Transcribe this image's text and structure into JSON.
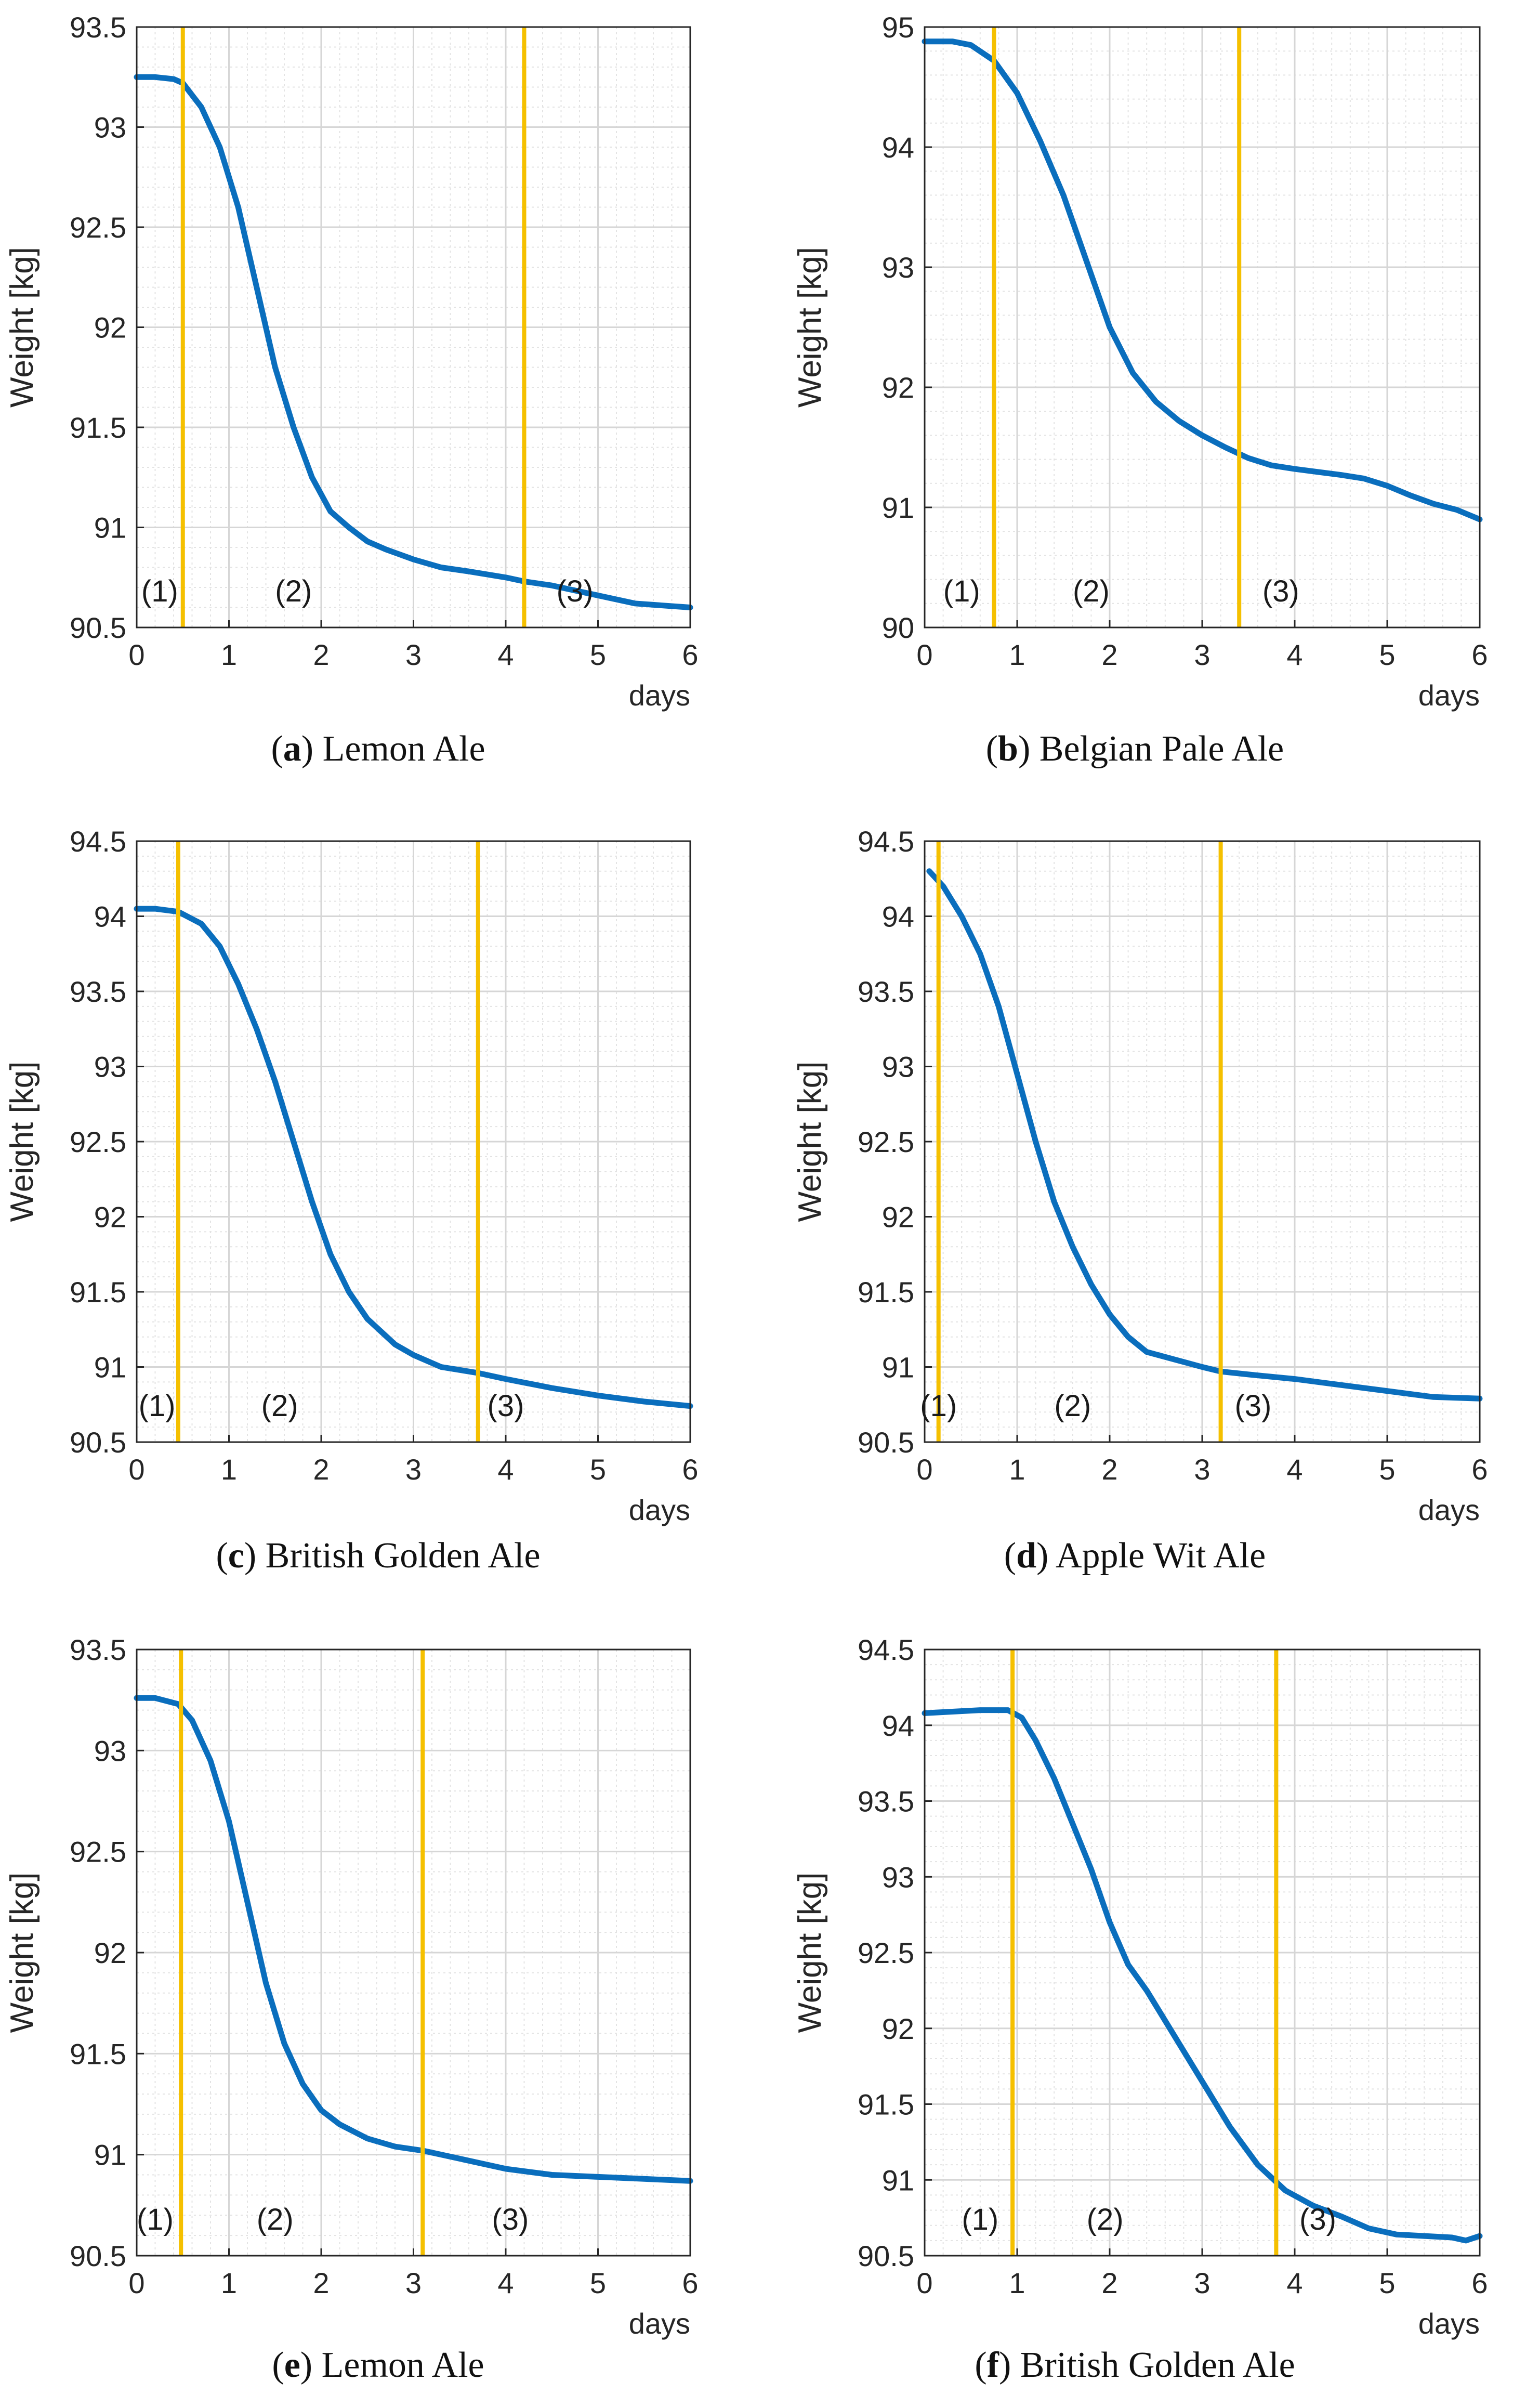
{
  "chart_data": [
    {
      "type": "line",
      "panel_letter": "a",
      "caption": "Lemon Ale",
      "ylabel": "Weight [kg]",
      "xlabel": "days",
      "xlim": [
        0,
        6
      ],
      "ylim": [
        90.5,
        93.5
      ],
      "xticks": [
        0,
        1,
        2,
        3,
        4,
        5,
        6
      ],
      "yticks": [
        90.5,
        91,
        91.5,
        92,
        92.5,
        93,
        93.5
      ],
      "ytick_labels": [
        "90.5",
        "91",
        "91.5",
        "92",
        "92.5",
        "93",
        "93.5"
      ],
      "grid": true,
      "series": [
        {
          "name": "weight",
          "color": "#0a6ebd",
          "x": [
            0,
            0.2,
            0.4,
            0.5,
            0.7,
            0.9,
            1.1,
            1.3,
            1.5,
            1.7,
            1.9,
            2.1,
            2.3,
            2.5,
            2.7,
            3.0,
            3.3,
            3.6,
            4.0,
            4.2,
            4.5,
            4.8,
            5.1,
            5.4,
            5.7,
            6.0
          ],
          "y": [
            93.25,
            93.25,
            93.24,
            93.22,
            93.1,
            92.9,
            92.6,
            92.2,
            91.8,
            91.5,
            91.25,
            91.08,
            91.0,
            90.93,
            90.89,
            90.84,
            90.8,
            90.78,
            90.75,
            90.73,
            90.71,
            90.68,
            90.65,
            90.62,
            90.61,
            90.6
          ]
        }
      ],
      "vlines": [
        0.5,
        4.2
      ],
      "phase_labels": [
        {
          "text": "(1)",
          "x": 0.25
        },
        {
          "text": "(2)",
          "x": 1.7
        },
        {
          "text": "(3)",
          "x": 4.75
        }
      ]
    },
    {
      "type": "line",
      "panel_letter": "b",
      "caption": "Belgian Pale Ale",
      "ylabel": "Weight [kg]",
      "xlabel": "days",
      "xlim": [
        0,
        6
      ],
      "ylim": [
        90,
        95
      ],
      "xticks": [
        0,
        1,
        2,
        3,
        4,
        5,
        6
      ],
      "yticks": [
        90,
        91,
        92,
        93,
        94,
        95
      ],
      "ytick_labels": [
        "90",
        "91",
        "92",
        "93",
        "94",
        "95"
      ],
      "grid": true,
      "series": [
        {
          "name": "weight",
          "color": "#0a6ebd",
          "x": [
            0,
            0.3,
            0.5,
            0.75,
            1.0,
            1.25,
            1.5,
            1.75,
            2.0,
            2.25,
            2.5,
            2.75,
            3.0,
            3.25,
            3.5,
            3.75,
            4.0,
            4.5,
            4.75,
            5.0,
            5.25,
            5.5,
            5.75,
            6.0
          ],
          "y": [
            94.88,
            94.88,
            94.85,
            94.72,
            94.45,
            94.05,
            93.6,
            93.05,
            92.5,
            92.12,
            91.88,
            91.72,
            91.6,
            91.5,
            91.41,
            91.35,
            91.32,
            91.27,
            91.24,
            91.18,
            91.1,
            91.03,
            90.98,
            90.9
          ]
        }
      ],
      "vlines": [
        0.75,
        3.4
      ],
      "phase_labels": [
        {
          "text": "(1)",
          "x": 0.4
        },
        {
          "text": "(2)",
          "x": 1.8
        },
        {
          "text": "(3)",
          "x": 3.85
        }
      ]
    },
    {
      "type": "line",
      "panel_letter": "c",
      "caption": "British Golden Ale",
      "ylabel": "Weight [kg]",
      "xlabel": "days",
      "xlim": [
        0,
        6
      ],
      "ylim": [
        90.5,
        94.5
      ],
      "xticks": [
        0,
        1,
        2,
        3,
        4,
        5,
        6
      ],
      "yticks": [
        90.5,
        91,
        91.5,
        92,
        92.5,
        93,
        93.5,
        94,
        94.5
      ],
      "ytick_labels": [
        "90.5",
        "91",
        "91.5",
        "92",
        "92.5",
        "93",
        "93.5",
        "94",
        "94.5"
      ],
      "grid": true,
      "series": [
        {
          "name": "weight",
          "color": "#0a6ebd",
          "x": [
            0,
            0.2,
            0.45,
            0.7,
            0.9,
            1.1,
            1.3,
            1.5,
            1.7,
            1.9,
            2.1,
            2.3,
            2.5,
            2.8,
            3.0,
            3.3,
            3.7,
            4.0,
            4.5,
            5.0,
            5.5,
            6.0
          ],
          "y": [
            94.05,
            94.05,
            94.03,
            93.95,
            93.8,
            93.55,
            93.25,
            92.9,
            92.5,
            92.1,
            91.75,
            91.5,
            91.32,
            91.15,
            91.08,
            91.0,
            90.96,
            90.92,
            90.86,
            90.81,
            90.77,
            90.74
          ]
        }
      ],
      "vlines": [
        0.45,
        3.7
      ],
      "phase_labels": [
        {
          "text": "(1)",
          "x": 0.22
        },
        {
          "text": "(2)",
          "x": 1.55
        },
        {
          "text": "(3)",
          "x": 4.0
        }
      ]
    },
    {
      "type": "line",
      "panel_letter": "d",
      "caption": "Apple Wit Ale",
      "ylabel": "Weight [kg]",
      "xlabel": "days",
      "xlim": [
        0,
        6
      ],
      "ylim": [
        90.5,
        94.5
      ],
      "xticks": [
        0,
        1,
        2,
        3,
        4,
        5,
        6
      ],
      "yticks": [
        90.5,
        91,
        91.5,
        92,
        92.5,
        93,
        93.5,
        94,
        94.5
      ],
      "ytick_labels": [
        "90.5",
        "91",
        "91.5",
        "92",
        "92.5",
        "93",
        "93.5",
        "94",
        "94.5"
      ],
      "grid": true,
      "series": [
        {
          "name": "weight",
          "color": "#0a6ebd",
          "x": [
            0.05,
            0.2,
            0.4,
            0.6,
            0.8,
            1.0,
            1.2,
            1.4,
            1.6,
            1.8,
            2.0,
            2.2,
            2.4,
            2.7,
            3.0,
            3.2,
            3.5,
            4.0,
            4.5,
            5.0,
            5.5,
            6.0
          ],
          "y": [
            94.3,
            94.2,
            94.0,
            93.75,
            93.4,
            92.95,
            92.5,
            92.1,
            91.8,
            91.55,
            91.35,
            91.2,
            91.1,
            91.05,
            91.0,
            90.97,
            90.95,
            90.92,
            90.88,
            90.84,
            90.8,
            90.79
          ]
        }
      ],
      "vlines": [
        0.15,
        3.2
      ],
      "phase_labels": [
        {
          "text": "(1)",
          "x": 0.15
        },
        {
          "text": "(2)",
          "x": 1.6
        },
        {
          "text": "(3)",
          "x": 3.55
        }
      ]
    },
    {
      "type": "line",
      "panel_letter": "e",
      "caption": "Lemon Ale",
      "ylabel": "Weight [kg]",
      "xlabel": "days",
      "xlim": [
        0,
        6
      ],
      "ylim": [
        90.5,
        93.5
      ],
      "xticks": [
        0,
        1,
        2,
        3,
        4,
        5,
        6
      ],
      "yticks": [
        90.5,
        91,
        91.5,
        92,
        92.5,
        93,
        93.5
      ],
      "ytick_labels": [
        "90.5",
        "91",
        "91.5",
        "92",
        "92.5",
        "93",
        "93.5"
      ],
      "grid": true,
      "series": [
        {
          "name": "weight",
          "color": "#0a6ebd",
          "x": [
            0,
            0.2,
            0.45,
            0.6,
            0.8,
            1.0,
            1.2,
            1.4,
            1.6,
            1.8,
            2.0,
            2.2,
            2.5,
            2.8,
            3.1,
            3.5,
            4.0,
            4.5,
            5.0,
            5.5,
            6.0
          ],
          "y": [
            93.26,
            93.26,
            93.23,
            93.15,
            92.95,
            92.65,
            92.25,
            91.85,
            91.55,
            91.35,
            91.22,
            91.15,
            91.08,
            91.04,
            91.02,
            90.98,
            90.93,
            90.9,
            90.89,
            90.88,
            90.87
          ]
        }
      ],
      "vlines": [
        0.48,
        3.1
      ],
      "phase_labels": [
        {
          "text": "(1)",
          "x": 0.2
        },
        {
          "text": "(2)",
          "x": 1.5
        },
        {
          "text": "(3)",
          "x": 4.05
        }
      ]
    },
    {
      "type": "line",
      "panel_letter": "f",
      "caption": "British Golden Ale",
      "ylabel": "Weight [kg]",
      "xlabel": "days",
      "xlim": [
        0,
        6
      ],
      "ylim": [
        90.5,
        94.5
      ],
      "xticks": [
        0,
        1,
        2,
        3,
        4,
        5,
        6
      ],
      "yticks": [
        90.5,
        91,
        91.5,
        92,
        92.5,
        93,
        93.5,
        94,
        94.5
      ],
      "ytick_labels": [
        "90.5",
        "91",
        "91.5",
        "92",
        "92.5",
        "93",
        "93.5",
        "94",
        "94.5"
      ],
      "grid": true,
      "series": [
        {
          "name": "weight",
          "color": "#0a6ebd",
          "x": [
            0,
            0.3,
            0.6,
            0.9,
            1.05,
            1.2,
            1.4,
            1.6,
            1.8,
            2.0,
            2.2,
            2.4,
            2.7,
            3.0,
            3.3,
            3.6,
            3.9,
            4.2,
            4.5,
            4.8,
            5.1,
            5.4,
            5.7,
            5.85,
            6.0
          ],
          "y": [
            94.08,
            94.09,
            94.1,
            94.1,
            94.05,
            93.9,
            93.65,
            93.35,
            93.05,
            92.7,
            92.42,
            92.25,
            91.95,
            91.65,
            91.35,
            91.1,
            90.93,
            90.83,
            90.76,
            90.68,
            90.64,
            90.63,
            90.62,
            90.6,
            90.63
          ]
        }
      ],
      "vlines": [
        0.95,
        3.8
      ],
      "phase_labels": [
        {
          "text": "(1)",
          "x": 0.6
        },
        {
          "text": "(2)",
          "x": 1.95
        },
        {
          "text": "(3)",
          "x": 4.25
        }
      ]
    }
  ],
  "phase_line_color": "#f5c000"
}
